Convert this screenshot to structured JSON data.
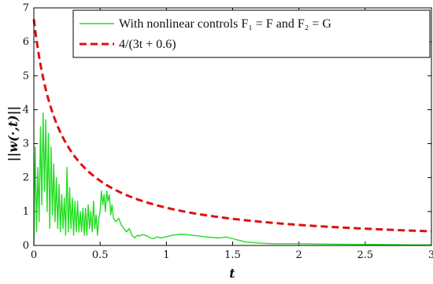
{
  "chart_data": {
    "type": "line",
    "xlabel": "t",
    "ylabel": "||w(·,t)||",
    "xlim": [
      0,
      3
    ],
    "ylim": [
      0,
      7
    ],
    "x_ticks": [
      "0",
      "0.5",
      "1",
      "1.5",
      "2",
      "2.5",
      "3"
    ],
    "y_ticks": [
      "0",
      "1",
      "2",
      "3",
      "4",
      "5",
      "6",
      "7"
    ],
    "grid": false,
    "legend_position": "top-right",
    "colors": {
      "series_1": "#22dd22",
      "series_2": "#dd1111"
    },
    "series": [
      {
        "name": "With nonlinear controls F₁ = F and F₂ = G",
        "style": "solid",
        "x": [
          0,
          0.01,
          0.02,
          0.03,
          0.04,
          0.05,
          0.06,
          0.07,
          0.08,
          0.09,
          0.1,
          0.11,
          0.12,
          0.13,
          0.14,
          0.15,
          0.16,
          0.17,
          0.18,
          0.19,
          0.2,
          0.21,
          0.22,
          0.23,
          0.24,
          0.25,
          0.26,
          0.27,
          0.28,
          0.29,
          0.3,
          0.31,
          0.32,
          0.33,
          0.34,
          0.35,
          0.36,
          0.37,
          0.38,
          0.39,
          0.4,
          0.41,
          0.42,
          0.43,
          0.44,
          0.45,
          0.46,
          0.47,
          0.48,
          0.49,
          0.5,
          0.51,
          0.52,
          0.53,
          0.54,
          0.55,
          0.56,
          0.57,
          0.58,
          0.59,
          0.6,
          0.62,
          0.64,
          0.66,
          0.68,
          0.7,
          0.72,
          0.74,
          0.76,
          0.78,
          0.8,
          0.82,
          0.84,
          0.86,
          0.88,
          0.9,
          0.93,
          0.96,
          1.0,
          1.05,
          1.1,
          1.15,
          1.2,
          1.3,
          1.4,
          1.45,
          1.5,
          1.6,
          1.7,
          1.8,
          2.0,
          2.2,
          2.5,
          2.8,
          3.0
        ],
        "y": [
          0,
          2.9,
          0.4,
          2.3,
          0.7,
          3.5,
          1.2,
          3.9,
          1.6,
          3.7,
          1.0,
          3.3,
          0.5,
          2.9,
          0.9,
          2.4,
          0.7,
          2.0,
          0.5,
          1.8,
          0.4,
          1.5,
          0.5,
          1.4,
          0.3,
          2.3,
          0.4,
          1.7,
          0.5,
          1.4,
          0.3,
          1.3,
          0.4,
          1.3,
          0.4,
          1.0,
          0.4,
          1.1,
          0.3,
          1.1,
          0.3,
          1.2,
          0.5,
          1.0,
          0.4,
          1.3,
          0.5,
          0.9,
          0.3,
          0.8,
          1.0,
          1.6,
          1.2,
          1.5,
          1.0,
          1.6,
          1.3,
          1.5,
          0.9,
          1.2,
          0.8,
          0.7,
          0.8,
          0.6,
          0.5,
          0.4,
          0.5,
          0.3,
          0.22,
          0.3,
          0.28,
          0.32,
          0.3,
          0.27,
          0.22,
          0.2,
          0.25,
          0.22,
          0.26,
          0.3,
          0.33,
          0.32,
          0.3,
          0.25,
          0.22,
          0.25,
          0.2,
          0.1,
          0.07,
          0.05,
          0.05,
          0.04,
          0.03,
          0.02,
          0.02
        ]
      },
      {
        "name": "4/(3t + 0.6)",
        "style": "dashed",
        "formula": "4/(3t+0.6)"
      }
    ]
  }
}
